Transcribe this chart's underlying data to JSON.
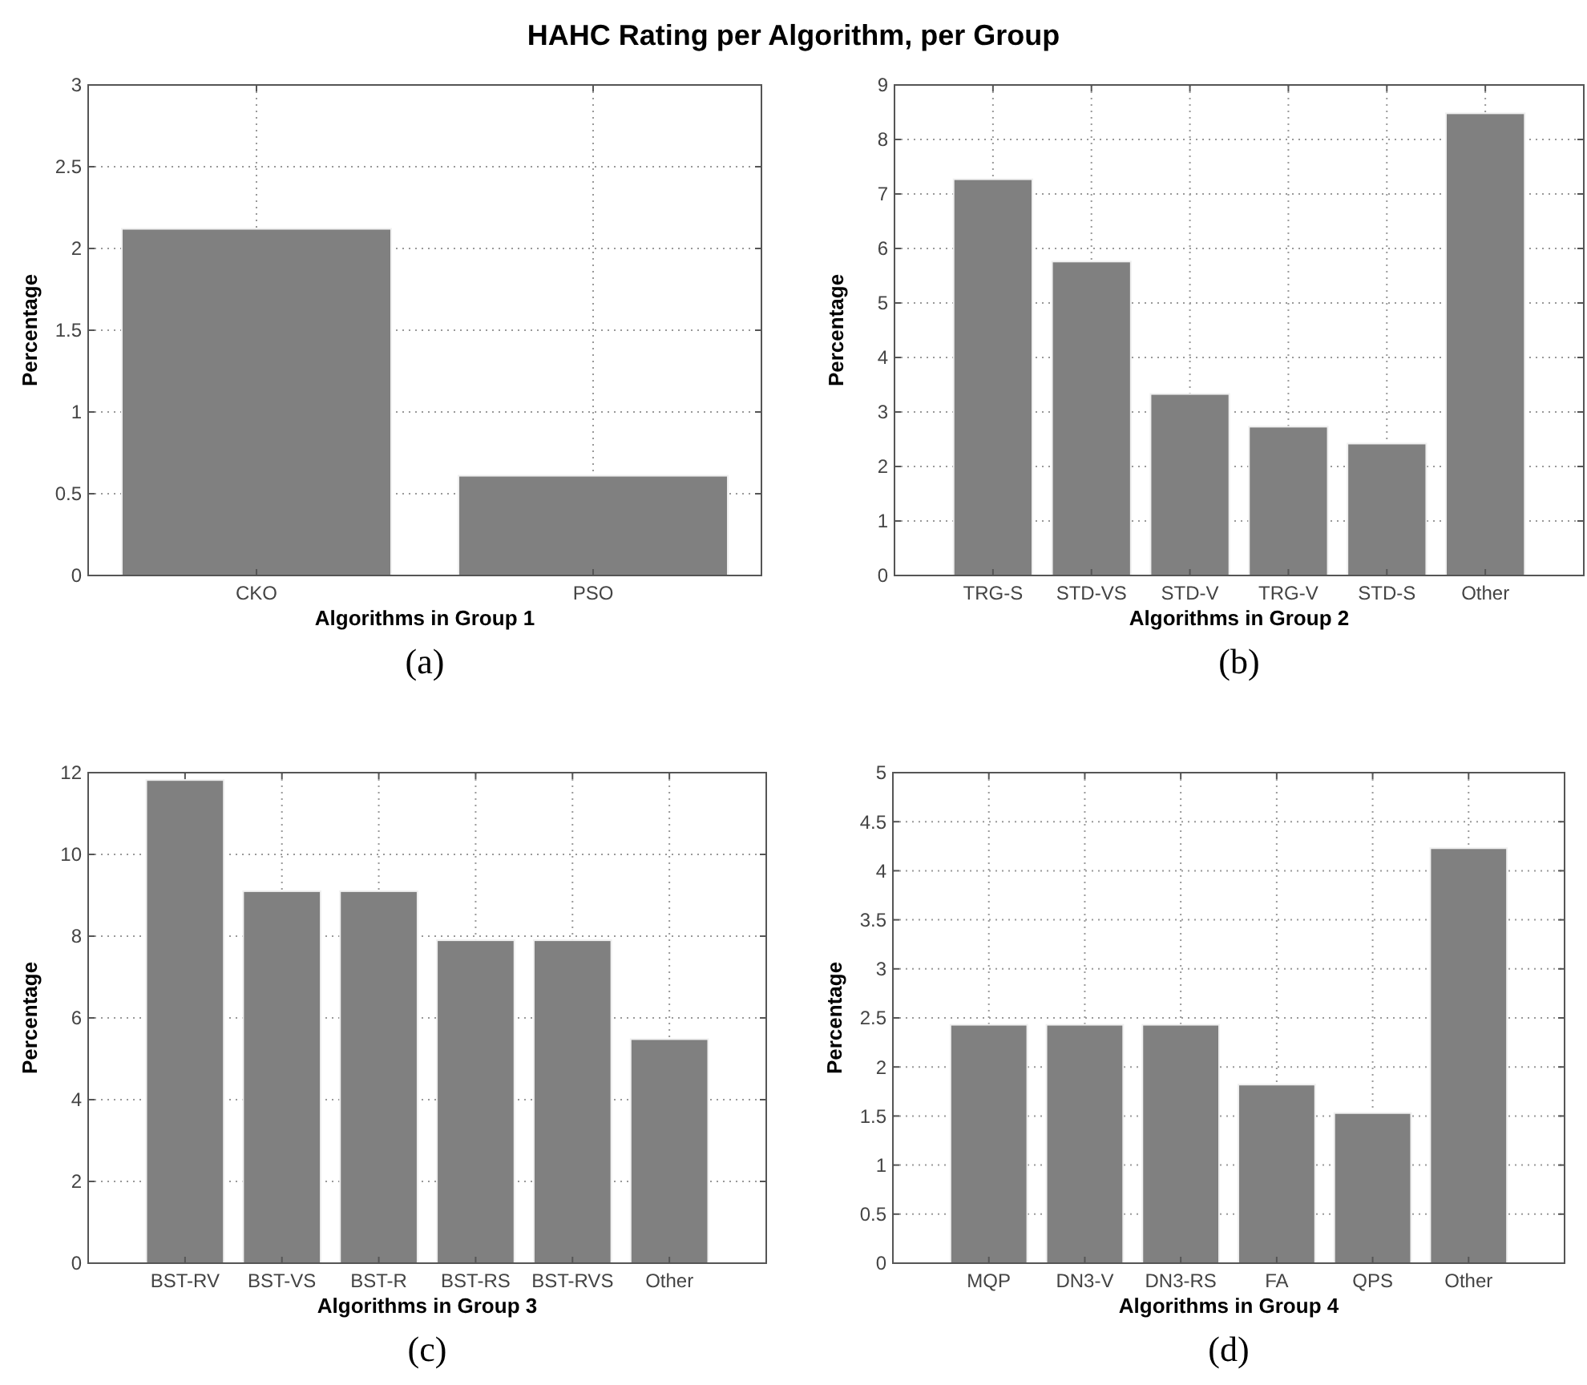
{
  "chart_data": [
    {
      "type": "bar",
      "title": "HAHC Rating per Algorithm, per Group",
      "xlabel": "Algorithms in Group 1",
      "ylabel": "Percentage",
      "annotations": [
        "(a)"
      ],
      "categories": [
        "CKO",
        "PSO"
      ],
      "values": [
        2.12,
        0.61
      ],
      "color": "#808080",
      "ylim": [
        0,
        3
      ],
      "yticks": [
        0,
        0.5,
        1,
        1.5,
        2,
        2.5,
        3
      ],
      "grid": true
    },
    {
      "type": "bar",
      "xlabel": "Algorithms in Group 2",
      "ylabel": "Percentage",
      "annotations": [
        "(b)"
      ],
      "categories": [
        "TRG-S",
        "STD-VS",
        "STD-V",
        "TRG-V",
        "STD-S",
        "Other"
      ],
      "values": [
        7.27,
        5.76,
        3.33,
        2.73,
        2.42,
        8.48
      ],
      "color": "#808080",
      "ylim": [
        0,
        9
      ],
      "yticks": [
        0,
        1,
        2,
        3,
        4,
        5,
        6,
        7,
        8,
        9
      ],
      "grid": true
    },
    {
      "type": "bar",
      "xlabel": "Algorithms in Group 3",
      "ylabel": "Percentage",
      "annotations": [
        "(c)"
      ],
      "categories": [
        "BST-RV",
        "BST-VS",
        "BST-R",
        "BST-RS",
        "BST-RVS",
        "Other"
      ],
      "values": [
        11.82,
        9.1,
        9.1,
        7.9,
        7.9,
        5.48
      ],
      "color": "#808080",
      "ylim": [
        0,
        12
      ],
      "yticks": [
        0,
        2,
        4,
        6,
        8,
        10,
        12
      ],
      "grid": true
    },
    {
      "type": "bar",
      "xlabel": "Algorithms in Group 4",
      "ylabel": "Percentage",
      "annotations": [
        "(d)"
      ],
      "categories": [
        "MQP",
        "DN3-V",
        "DN3-RS",
        "FA",
        "QPS",
        "Other"
      ],
      "values": [
        2.43,
        2.43,
        2.43,
        1.82,
        1.53,
        4.23
      ],
      "color": "#808080",
      "ylim": [
        0,
        5
      ],
      "yticks": [
        0,
        0.5,
        1,
        1.5,
        2,
        2.5,
        3,
        3.5,
        4,
        4.5,
        5
      ],
      "grid": true
    }
  ]
}
